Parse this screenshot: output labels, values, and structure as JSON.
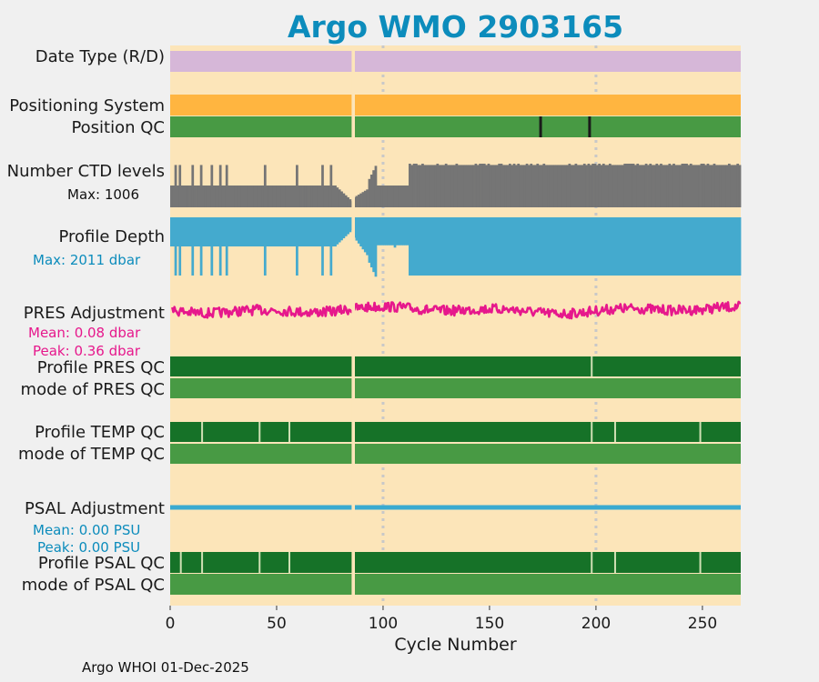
{
  "chart_data": {
    "type": "strip-panel",
    "title": "Argo WMO 2903165",
    "xlabel": "Cycle Number",
    "xlim": [
      0,
      268
    ],
    "x_ticks": [
      "0",
      "50",
      "100",
      "150",
      "200",
      "250"
    ],
    "x_tick_values": [
      0,
      50,
      100,
      150,
      200,
      250
    ],
    "gridlines_x": [
      100,
      200
    ],
    "gap_cycle": 86,
    "colors": {
      "background": "#fce5b9",
      "title": "#0c8cbc",
      "date_type": "#d6b7d8",
      "positioning": "#ffb540",
      "qc_dark": "#167228",
      "qc_light": "#489a44",
      "ctd": "#757575",
      "depth": "#44aace",
      "pres_adj": "#e6188c",
      "psal_adj": "#3aaad0",
      "bad_mark": "#1a1a1a",
      "gap": "#fce5b9"
    },
    "panels": {
      "date_type": {
        "label": "Date Type (R/D)"
      },
      "positioning": {
        "label": "Positioning System"
      },
      "position_qc": {
        "label": "Position QC",
        "bad_cycles": [
          174,
          197
        ]
      },
      "ctd_levels": {
        "label": "Number CTD levels",
        "max_text": "Max: 1006",
        "max": 1006
      },
      "profile_depth": {
        "label": "Profile Depth",
        "max_text": "Max: 2011 dbar",
        "max": 2011
      },
      "pres_adjustment": {
        "label": "PRES Adjustment",
        "mean_text": "Mean: 0.08 dbar",
        "peak_text": "Peak: 0.36 dbar",
        "mean": 0.08,
        "peak": 0.36
      },
      "profile_pres_qc": {
        "label": "Profile PRES QC",
        "mark_cycles": [
          198
        ]
      },
      "mode_pres_qc": {
        "label": "mode of PRES QC"
      },
      "profile_temp_qc": {
        "label": "Profile TEMP QC",
        "mark_cycles": [
          15,
          42,
          56,
          198,
          209,
          249
        ]
      },
      "mode_temp_qc": {
        "label": "mode of TEMP QC"
      },
      "psal_adjustment": {
        "label": "PSAL Adjustment",
        "mean_text": "Mean: 0.00 PSU",
        "peak_text": "Peak: 0.00 PSU",
        "mean": 0.0,
        "peak": 0.0
      },
      "profile_psal_qc": {
        "label": "Profile PSAL QC",
        "mark_cycles": [
          5,
          15,
          42,
          56,
          198,
          209,
          249
        ]
      },
      "mode_psal_qc": {
        "label": "mode of PSAL QC"
      }
    }
  },
  "footer": "Argo WHOI 01-Dec-2025"
}
